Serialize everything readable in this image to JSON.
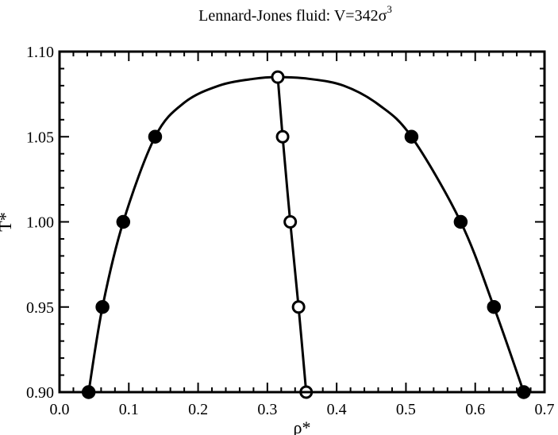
{
  "chart_data": {
    "type": "scatter",
    "title": "Lennard-Jones fluid: V=342σ",
    "title_superscript": "3",
    "xlabel": "ρ*",
    "ylabel": "T*",
    "xlim": [
      0.0,
      0.7
    ],
    "ylim": [
      0.9,
      1.1
    ],
    "x_ticks": [
      "0.0",
      "0.1",
      "0.2",
      "0.3",
      "0.4",
      "0.5",
      "0.6",
      "0.7"
    ],
    "y_ticks": [
      "0.90",
      "0.95",
      "1.00",
      "1.05",
      "1.10"
    ],
    "grid": false,
    "series": [
      {
        "marker": "filled-circle",
        "x": [
          0.042,
          0.062,
          0.092,
          0.138,
          0.508,
          0.579,
          0.627,
          0.67
        ],
        "y": [
          0.9,
          0.95,
          1.0,
          1.05,
          1.05,
          1.0,
          0.95,
          0.9
        ]
      },
      {
        "marker": "open-circle",
        "x": [
          0.315,
          0.322,
          0.333,
          0.345,
          0.356
        ],
        "y": [
          1.085,
          1.05,
          1.0,
          0.95,
          0.9
        ]
      }
    ],
    "curves": [
      {
        "description": "coexistence curve",
        "x": [
          0.042,
          0.062,
          0.092,
          0.138,
          0.18,
          0.23,
          0.28,
          0.315,
          0.36,
          0.41,
          0.46,
          0.508,
          0.579,
          0.627,
          0.67
        ],
        "y": [
          0.9,
          0.95,
          1.0,
          1.05,
          1.07,
          1.08,
          1.084,
          1.085,
          1.084,
          1.08,
          1.069,
          1.05,
          1.0,
          0.95,
          0.9
        ]
      },
      {
        "description": "rectilinear diameter",
        "x": [
          0.315,
          0.322,
          0.333,
          0.345,
          0.356
        ],
        "y": [
          1.085,
          1.05,
          1.0,
          0.95,
          0.9
        ]
      }
    ],
    "colors": {
      "stroke": "#000000",
      "open_fill": "#ffffff"
    }
  }
}
